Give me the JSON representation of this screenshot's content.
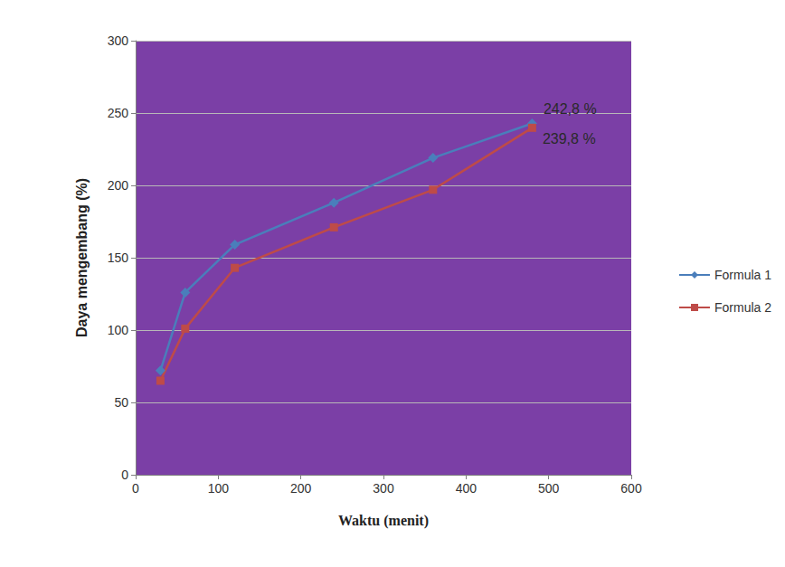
{
  "chart_data": {
    "type": "line",
    "x_label": "Waktu (menit)",
    "y_label": "Daya mengembang (%)",
    "xlim": [
      0,
      600
    ],
    "xticks": [
      0,
      100,
      200,
      300,
      400,
      500,
      600
    ],
    "ylim": [
      0,
      300
    ],
    "yticks": [
      0,
      50,
      100,
      150,
      200,
      250,
      300
    ],
    "grid": true,
    "legend": "right",
    "series": [
      {
        "name": "Formula 1",
        "color": "#4a7ebb",
        "marker": "diamond",
        "line_style": "solid",
        "x": [
          30,
          60,
          120,
          240,
          360,
          480
        ],
        "values": [
          72,
          126,
          159,
          188,
          219,
          242.8
        ]
      },
      {
        "name": "Formula 2",
        "color": "#be4b48",
        "marker": "square",
        "line_style": "solid",
        "x": [
          30,
          60,
          120,
          240,
          360,
          480
        ],
        "values": [
          65,
          101,
          143,
          171,
          197,
          239.8
        ]
      }
    ],
    "annotations": [
      {
        "text": "242,8 %",
        "series": "Formula 1",
        "x": 480,
        "y": 242.8
      },
      {
        "text": "239,8 %",
        "series": "Formula 2",
        "x": 480,
        "y": 239.8
      }
    ]
  }
}
